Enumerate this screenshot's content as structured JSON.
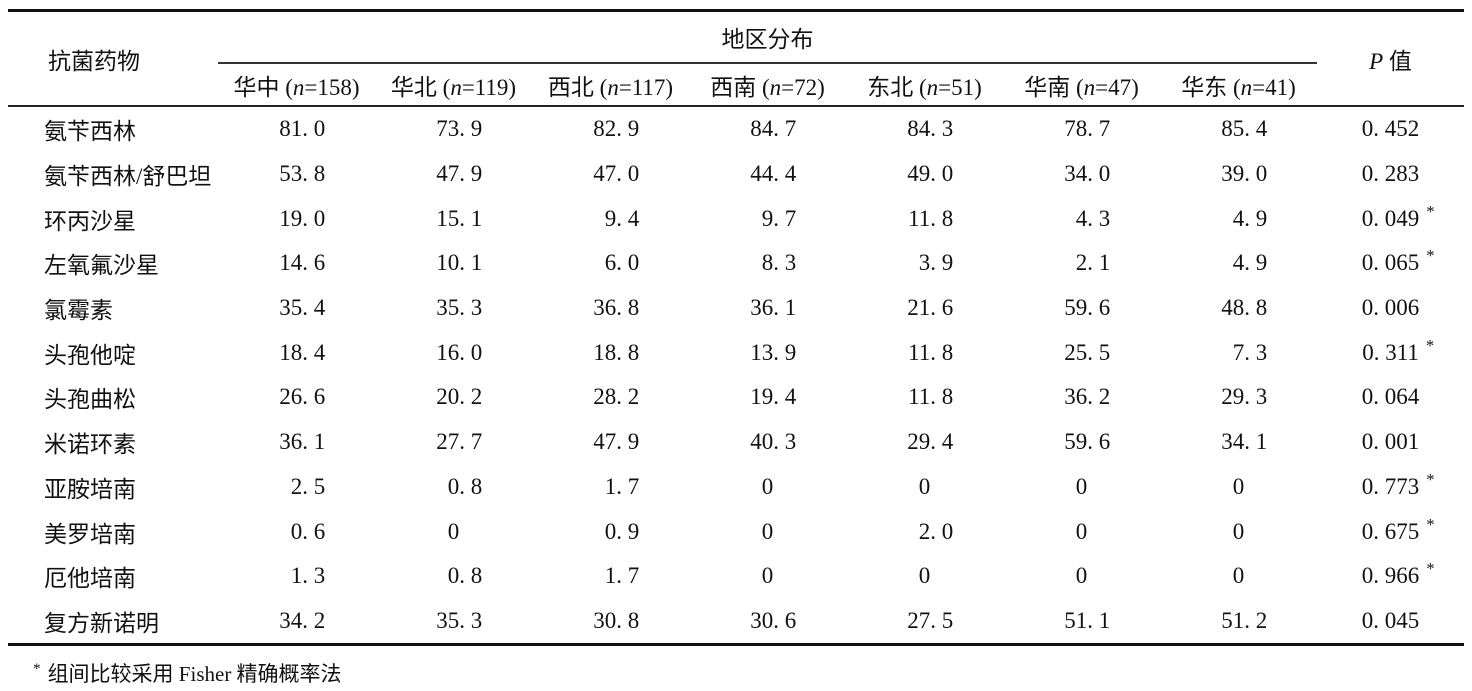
{
  "table": {
    "col1_header": "抗菌药物",
    "group_header": "地区分布",
    "p_header_italic": "P",
    "p_header_text": " 值",
    "regions": [
      {
        "name": "华中",
        "n_symbol": "n",
        "n": "158"
      },
      {
        "name": "华北",
        "n_symbol": "n",
        "n": "119"
      },
      {
        "name": "西北",
        "n_symbol": "n",
        "n": "117"
      },
      {
        "name": "西南",
        "n_symbol": "n",
        "n": "72"
      },
      {
        "name": "东北",
        "n_symbol": "n",
        "n": "51"
      },
      {
        "name": "华南",
        "n_symbol": "n",
        "n": "47"
      },
      {
        "name": "华东",
        "n_symbol": "n",
        "n": "41"
      }
    ],
    "rows": [
      {
        "drug": "氨苄西林",
        "values": [
          "81. 0",
          "73. 9",
          "82. 9",
          "84. 7",
          "84. 3",
          "78. 7",
          "85. 4"
        ],
        "p": "0. 452",
        "star": false
      },
      {
        "drug": "氨苄西林/舒巴坦",
        "values": [
          "53. 8",
          "47. 9",
          "47. 0",
          "44. 4",
          "49. 0",
          "34. 0",
          "39. 0"
        ],
        "p": "0. 283",
        "star": false
      },
      {
        "drug": "环丙沙星",
        "values": [
          "19. 0",
          "15. 1",
          "9. 4",
          "9. 7",
          "11. 8",
          "4. 3",
          "4. 9"
        ],
        "p": "0. 049",
        "star": true
      },
      {
        "drug": "左氧氟沙星",
        "values": [
          "14. 6",
          "10. 1",
          "6. 0",
          "8. 3",
          "3. 9",
          "2. 1",
          "4. 9"
        ],
        "p": "0. 065",
        "star": true
      },
      {
        "drug": "氯霉素",
        "values": [
          "35. 4",
          "35. 3",
          "36. 8",
          "36. 1",
          "21. 6",
          "59. 6",
          "48. 8"
        ],
        "p": "0. 006",
        "star": false
      },
      {
        "drug": "头孢他啶",
        "values": [
          "18. 4",
          "16. 0",
          "18. 8",
          "13. 9",
          "11. 8",
          "25. 5",
          "7. 3"
        ],
        "p": "0. 311",
        "star": true
      },
      {
        "drug": "头孢曲松",
        "values": [
          "26. 6",
          "20. 2",
          "28. 2",
          "19. 4",
          "11. 8",
          "36. 2",
          "29. 3"
        ],
        "p": "0. 064",
        "star": false
      },
      {
        "drug": "米诺环素",
        "values": [
          "36. 1",
          "27. 7",
          "47. 9",
          "40. 3",
          "29. 4",
          "59. 6",
          "34. 1"
        ],
        "p": "0. 001",
        "star": false
      },
      {
        "drug": "亚胺培南",
        "values": [
          "2. 5",
          "0. 8",
          "1. 7",
          "0",
          "0",
          "0",
          "0"
        ],
        "p": "0. 773",
        "star": true
      },
      {
        "drug": "美罗培南",
        "values": [
          "0. 6",
          "0",
          "0. 9",
          "0",
          "2. 0",
          "0",
          "0"
        ],
        "p": "0. 675",
        "star": true
      },
      {
        "drug": "厄他培南",
        "values": [
          "1. 3",
          "0. 8",
          "1. 7",
          "0",
          "0",
          "0",
          "0"
        ],
        "p": "0. 966",
        "star": true
      },
      {
        "drug": "复方新诺明",
        "values": [
          "34. 2",
          "35. 3",
          "30. 8",
          "30. 6",
          "27. 5",
          "51. 1",
          "51. 2"
        ],
        "p": "0. 045",
        "star": false
      }
    ],
    "star_symbol": "*",
    "footnote_marker": "*",
    "footnote_text": "组间比较采用 Fisher 精确概率法"
  }
}
